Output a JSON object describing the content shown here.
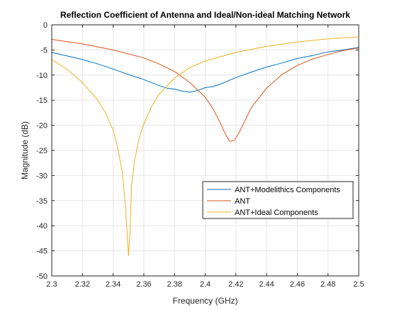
{
  "chart_data": {
    "type": "line",
    "title": "Reflection Coefficient of Antenna and Ideal/Non-ideal Matching Network",
    "xlabel": "Frequency (GHz)",
    "ylabel": "Magnitude (dB)",
    "xlim": [
      2.3,
      2.5
    ],
    "ylim": [
      -50,
      0
    ],
    "xticks": [
      2.3,
      2.32,
      2.34,
      2.36,
      2.38,
      2.4,
      2.42,
      2.44,
      2.46,
      2.48,
      2.5
    ],
    "xtick_labels": [
      "2.3",
      "2.32",
      "2.34",
      "2.36",
      "2.38",
      "2.4",
      "2.42",
      "2.44",
      "2.46",
      "2.48",
      "2.5"
    ],
    "yticks": [
      0,
      -5,
      -10,
      -15,
      -20,
      -25,
      -30,
      -35,
      -40,
      -45,
      -50
    ],
    "ytick_labels": [
      "0",
      "-5",
      "-10",
      "-15",
      "-20",
      "-25",
      "-30",
      "-35",
      "-40",
      "-45",
      "-50"
    ],
    "grid": true,
    "legend_position": "lower-right",
    "series": [
      {
        "name": "ANT+Modelithics Components",
        "color": "#0072BD",
        "x": [
          2.3,
          2.31,
          2.32,
          2.33,
          2.34,
          2.35,
          2.36,
          2.37,
          2.375,
          2.38,
          2.385,
          2.39,
          2.395,
          2.4,
          2.405,
          2.41,
          2.42,
          2.43,
          2.44,
          2.45,
          2.46,
          2.47,
          2.48,
          2.49,
          2.5
        ],
        "y": [
          -5.5,
          -6.2,
          -6.9,
          -7.8,
          -8.8,
          -9.9,
          -10.9,
          -12.1,
          -12.6,
          -12.8,
          -13.2,
          -13.4,
          -13.1,
          -12.5,
          -12.3,
          -11.8,
          -10.5,
          -9.4,
          -8.4,
          -7.6,
          -6.7,
          -6.1,
          -5.4,
          -5.0,
          -4.5
        ]
      },
      {
        "name": "ANT",
        "color": "#D95319",
        "x": [
          2.3,
          2.32,
          2.34,
          2.36,
          2.37,
          2.38,
          2.39,
          2.4,
          2.405,
          2.41,
          2.413,
          2.416,
          2.419,
          2.422,
          2.426,
          2.43,
          2.44,
          2.45,
          2.46,
          2.47,
          2.48,
          2.49,
          2.5
        ],
        "y": [
          -2.9,
          -3.8,
          -5.0,
          -6.6,
          -7.8,
          -9.3,
          -11.5,
          -14.4,
          -16.7,
          -19.6,
          -21.7,
          -23.2,
          -23.0,
          -21.5,
          -19.0,
          -16.5,
          -12.6,
          -9.9,
          -8.1,
          -6.8,
          -5.9,
          -5.1,
          -4.6
        ]
      },
      {
        "name": "ANT+Ideal Components",
        "color": "#EDB120",
        "x": [
          2.3,
          2.31,
          2.32,
          2.33,
          2.335,
          2.34,
          2.343,
          2.346,
          2.348,
          2.35,
          2.351,
          2.352,
          2.354,
          2.357,
          2.36,
          2.365,
          2.37,
          2.38,
          2.39,
          2.4,
          2.42,
          2.44,
          2.46,
          2.48,
          2.5
        ],
        "y": [
          -6.9,
          -8.9,
          -11.5,
          -15.0,
          -17.5,
          -21.0,
          -24.5,
          -29.5,
          -36.0,
          -46.0,
          -41.5,
          -32.0,
          -27.0,
          -22.5,
          -19.7,
          -16.3,
          -13.8,
          -10.6,
          -8.5,
          -7.2,
          -5.5,
          -4.3,
          -3.4,
          -2.8,
          -2.4
        ]
      }
    ]
  }
}
